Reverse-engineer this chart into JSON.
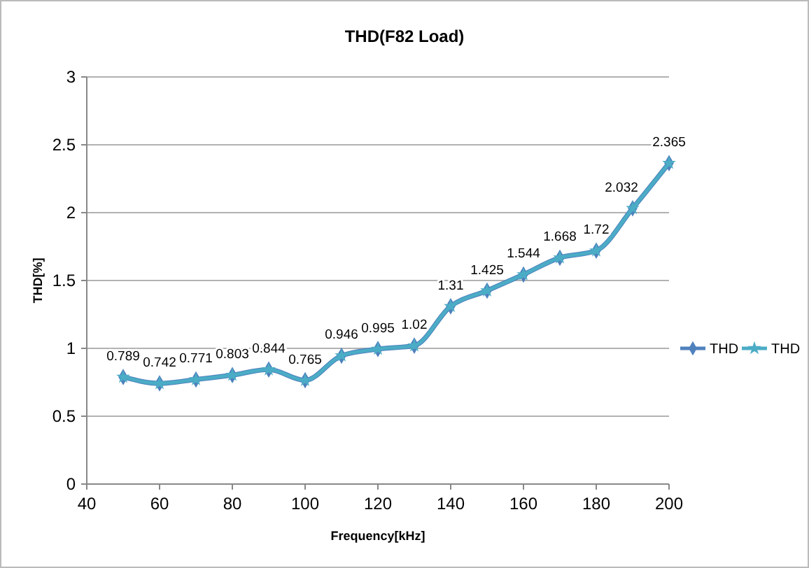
{
  "chart_data": {
    "type": "line",
    "title": "THD(F82 Load)",
    "xlabel": "Frequency[kHz]",
    "ylabel": "THD[%]",
    "x": [
      50,
      60,
      70,
      80,
      90,
      100,
      110,
      120,
      130,
      140,
      150,
      160,
      170,
      180,
      190,
      200
    ],
    "series": [
      {
        "name": "THD",
        "color": "#4f81bd",
        "marker": "diamond",
        "values": [
          0.789,
          0.742,
          0.771,
          0.803,
          0.844,
          0.765,
          0.946,
          0.995,
          1.02,
          1.31,
          1.425,
          1.544,
          1.668,
          1.72,
          2.032,
          2.365
        ],
        "value_labels": [
          "0.789",
          "0.742",
          "0.771",
          "0.803",
          "0.844",
          "0.765",
          "0.946",
          "0.995",
          "1.02",
          "1.31",
          "1.425",
          "1.544",
          "1.668",
          "1.72",
          "2.032",
          "2.365"
        ]
      },
      {
        "name": "THD",
        "color": "#4bacc6",
        "marker": "star",
        "values": [
          0.789,
          0.742,
          0.771,
          0.803,
          0.844,
          0.765,
          0.946,
          0.995,
          1.02,
          1.31,
          1.425,
          1.544,
          1.668,
          1.72,
          2.032,
          2.365
        ]
      }
    ],
    "xlim": [
      40,
      200
    ],
    "xticks": [
      40,
      60,
      80,
      100,
      120,
      140,
      160,
      180,
      200
    ],
    "ylim": [
      0,
      3
    ],
    "yticks": [
      0,
      0.5,
      1,
      1.5,
      2,
      2.5,
      3
    ],
    "grid": "y",
    "legend": "right"
  }
}
